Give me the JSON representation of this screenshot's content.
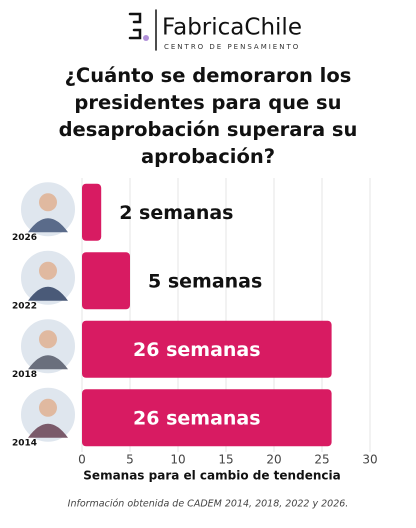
{
  "logo": {
    "name": "FabricaChile",
    "tagline": "CENTRO DE PENSAMIENTO"
  },
  "chart_data": {
    "type": "bar",
    "orientation": "horizontal",
    "title": "¿Cuánto se demoraron los presidentes para que su desaprobación superara su aprobación?",
    "categories": [
      "2026",
      "2022",
      "2018",
      "2014"
    ],
    "values": [
      2,
      5,
      26,
      26
    ],
    "value_labels": [
      "2 semanas",
      "5 semanas",
      "26 semanas",
      "26 semanas"
    ],
    "color": "#d81b62",
    "xlim": [
      0,
      30
    ],
    "xticks": [
      0,
      5,
      10,
      15,
      20,
      25,
      30
    ],
    "xlabel": "Semanas para el cambio de tendencia",
    "grid": true,
    "source": "Información obtenida de CADEM 2014, 2018, 2022 y 2026."
  }
}
